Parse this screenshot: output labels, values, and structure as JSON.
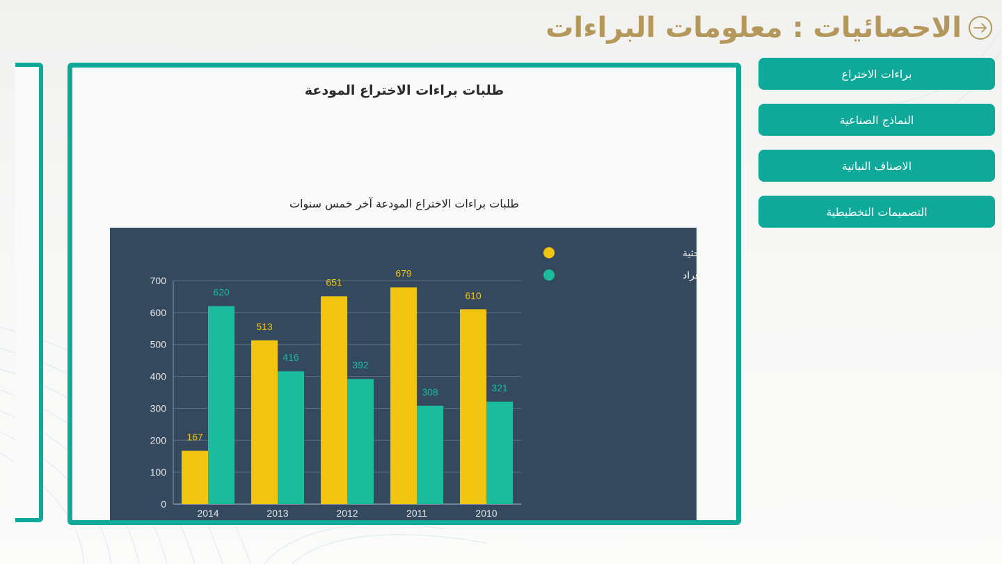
{
  "header": {
    "title": "الاحصائيات : معلومات البراءات",
    "icon": "arrow-right-circle-icon",
    "accent_color": "#b4975a"
  },
  "side_menu": {
    "items": [
      {
        "label": "براءات الاختراع"
      },
      {
        "label": "النماذج الصناعية"
      },
      {
        "label": "الاصناف النباتية"
      },
      {
        "label": "التصميمات التخطيطية"
      }
    ],
    "color": "#0fa99a"
  },
  "panel": {
    "title": "طلبات براءات الاختراع المودعة"
  },
  "chart_data": {
    "type": "bar",
    "title": "طلبات براءات الاختراع المودعة آخر خمس سنوات",
    "categories": [
      "2014",
      "2013",
      "2012",
      "2011",
      "2010"
    ],
    "series": [
      {
        "name": "الشركات والمؤسسات البحثية",
        "values": [
          167,
          513,
          651,
          679,
          610
        ],
        "color": "#f1c40f"
      },
      {
        "name": "الأفراد",
        "values": [
          620,
          416,
          392,
          308,
          321
        ],
        "color": "#1abc9c"
      }
    ],
    "ylim": [
      0,
      700
    ],
    "yticks": [
      0,
      100,
      200,
      300,
      400,
      500,
      600,
      700
    ],
    "grid": true,
    "legend": "top-right",
    "background": "#34495e"
  }
}
